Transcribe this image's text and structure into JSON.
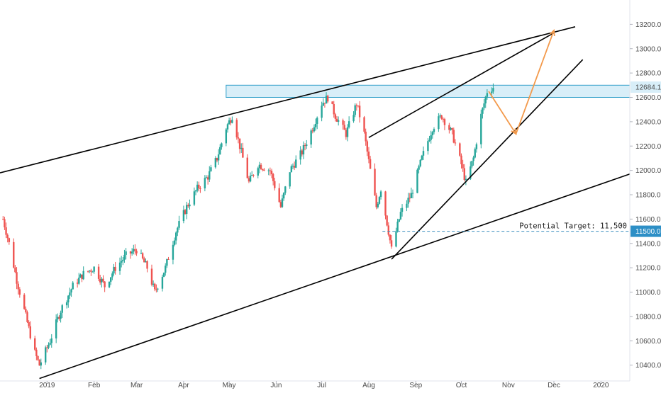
{
  "chart_data": {
    "type": "candlestick",
    "y_axis": {
      "min": 10200,
      "max": 13400,
      "position": "right",
      "ticks": [
        "13200.0",
        "13000.0",
        "12800.0",
        "12600.0",
        "12400.0",
        "12200.0",
        "12000.0",
        "11800.0",
        "11600.0",
        "11400.0",
        "11200.0",
        "11000.0",
        "10800.0",
        "10600.0",
        "10400.0"
      ]
    },
    "x_axis": {
      "start": "2018-12-01",
      "end": "2020-01-20",
      "ticks": [
        {
          "date": "2019-01-01",
          "label": "2019"
        },
        {
          "date": "2019-02-01",
          "label": "Feb"
        },
        {
          "date": "2019-03-01",
          "label": "Mar"
        },
        {
          "date": "2019-04-01",
          "label": "Apr"
        },
        {
          "date": "2019-05-01",
          "label": "May"
        },
        {
          "date": "2019-06-01",
          "label": "Jun"
        },
        {
          "date": "2019-07-01",
          "label": "Jul"
        },
        {
          "date": "2019-08-01",
          "label": "Aug"
        },
        {
          "date": "2019-09-01",
          "label": "Sep"
        },
        {
          "date": "2019-10-01",
          "label": "Oct"
        },
        {
          "date": "2019-11-01",
          "label": "Nov"
        },
        {
          "date": "2019-12-01",
          "label": "Dec"
        },
        {
          "date": "2020-01-01",
          "label": "2020"
        }
      ]
    },
    "price_path": [
      [
        "2018-12-03",
        11600
      ],
      [
        "2018-12-07",
        11400
      ],
      [
        "2018-12-12",
        11100
      ],
      [
        "2018-12-18",
        10800
      ],
      [
        "2018-12-24",
        10500
      ],
      [
        "2018-12-27",
        10400
      ],
      [
        "2019-01-03",
        10600
      ],
      [
        "2019-01-10",
        10850
      ],
      [
        "2019-01-18",
        11050
      ],
      [
        "2019-01-25",
        11150
      ],
      [
        "2019-02-01",
        11200
      ],
      [
        "2019-02-08",
        11050
      ],
      [
        "2019-02-15",
        11200
      ],
      [
        "2019-02-22",
        11300
      ],
      [
        "2019-03-01",
        11350
      ],
      [
        "2019-03-08",
        11200
      ],
      [
        "2019-03-13",
        11000
      ],
      [
        "2019-03-20",
        11200
      ],
      [
        "2019-03-27",
        11500
      ],
      [
        "2019-04-03",
        11700
      ],
      [
        "2019-04-10",
        11850
      ],
      [
        "2019-04-17",
        11950
      ],
      [
        "2019-04-23",
        12100
      ],
      [
        "2019-04-29",
        12350
      ],
      [
        "2019-05-03",
        12450
      ],
      [
        "2019-05-08",
        12200
      ],
      [
        "2019-05-14",
        11900
      ],
      [
        "2019-05-20",
        12050
      ],
      [
        "2019-05-28",
        12000
      ],
      [
        "2019-06-04",
        11700
      ],
      [
        "2019-06-10",
        12000
      ],
      [
        "2019-06-18",
        12150
      ],
      [
        "2019-06-25",
        12350
      ],
      [
        "2019-07-01",
        12550
      ],
      [
        "2019-07-05",
        12600
      ],
      [
        "2019-07-10",
        12450
      ],
      [
        "2019-07-17",
        12300
      ],
      [
        "2019-07-24",
        12550
      ],
      [
        "2019-07-29",
        12300
      ],
      [
        "2019-08-02",
        12000
      ],
      [
        "2019-08-06",
        11700
      ],
      [
        "2019-08-09",
        11850
      ],
      [
        "2019-08-14",
        11500
      ],
      [
        "2019-08-16",
        11350
      ],
      [
        "2019-08-22",
        11650
      ],
      [
        "2019-08-29",
        11800
      ],
      [
        "2019-09-05",
        12100
      ],
      [
        "2019-09-12",
        12350
      ],
      [
        "2019-09-18",
        12450
      ],
      [
        "2019-09-25",
        12300
      ],
      [
        "2019-10-01",
        12050
      ],
      [
        "2019-10-04",
        11900
      ],
      [
        "2019-10-09",
        12100
      ],
      [
        "2019-10-14",
        12450
      ],
      [
        "2019-10-18",
        12650
      ],
      [
        "2019-10-22",
        12684
      ]
    ],
    "price_range": {
      "low": 10300,
      "high": 12800,
      "last": 12684.1
    },
    "last_price_label": "12684.1",
    "colors": {
      "up": "#26a69a",
      "down": "#ef5350",
      "trendline": "#000000",
      "zone_fill": "#d8eef8",
      "zone_stroke": "#2f9ec9",
      "projection": "#f39a4c",
      "target_line": "#3a8fbf",
      "badge_bg": "#2d8fc6"
    },
    "annotations": {
      "potential_target_label": "Potential Target: 11,500",
      "potential_target_value": 11500,
      "target_badge": "11500.0",
      "resistance_zone": {
        "from": 12600,
        "to": 12700
      },
      "projection_points": [
        [
          "2019-10-19",
          12650
        ],
        [
          "2019-11-06",
          12300
        ],
        [
          "2019-12-01",
          13150
        ]
      ],
      "trendlines": [
        {
          "name": "upper-channel",
          "points": [
            [
              "2018-12-01",
              11980
            ],
            [
              "2019-12-15",
              13180
            ]
          ]
        },
        {
          "name": "lower-channel",
          "points": [
            [
              "2018-12-27",
              10290
            ],
            [
              "2020-01-20",
              11970
            ]
          ]
        },
        {
          "name": "wedge-upper",
          "points": [
            [
              "2019-08-01",
              12270
            ],
            [
              "2019-12-01",
              13130
            ]
          ]
        },
        {
          "name": "wedge-lower",
          "points": [
            [
              "2019-08-16",
              11270
            ],
            [
              "2019-12-20",
              12910
            ]
          ]
        }
      ]
    }
  }
}
